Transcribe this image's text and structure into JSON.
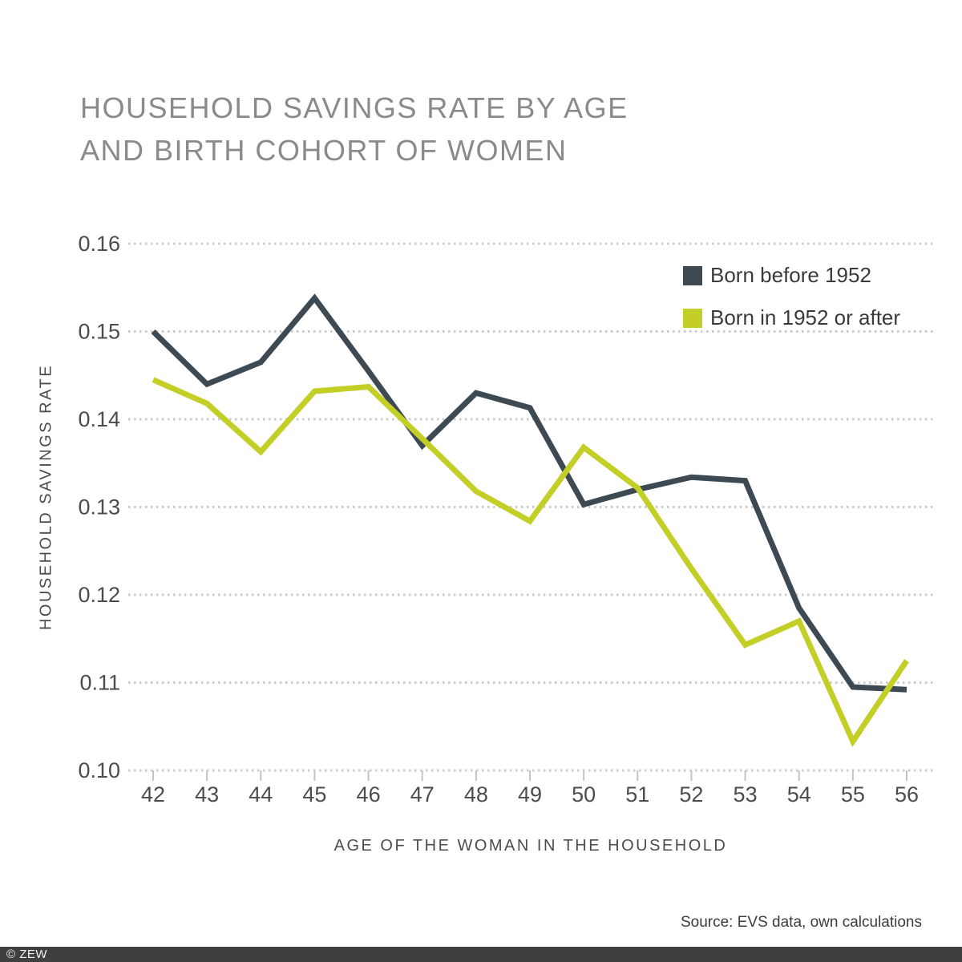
{
  "title": {
    "line1": "HOUSEHOLD SAVINGS RATE BY AGE",
    "line2": "AND BIRTH COHORT OF WOMEN"
  },
  "chart_data": {
    "type": "line",
    "x": [
      42,
      43,
      44,
      45,
      46,
      47,
      48,
      49,
      50,
      51,
      52,
      53,
      54,
      55,
      56
    ],
    "xlabel": "AGE OF THE WOMAN IN THE HOUSEHOLD",
    "ylabel": "HOUSEHOLD SAVINGS RATE",
    "ylim": [
      0.1,
      0.16
    ],
    "ytick_step": 0.01,
    "ytick_labels": [
      "0.16",
      "0.15",
      "0.14",
      "0.13",
      "0.12",
      "0.11",
      "0.10"
    ],
    "grid": "horizontal-dotted",
    "legend_position": "top-right",
    "series": [
      {
        "name": "Born before 1952",
        "color": "#3d4a53",
        "values": [
          0.15,
          0.144,
          0.1465,
          0.1538,
          0.1455,
          0.137,
          0.143,
          0.1413,
          0.1303,
          0.132,
          0.1334,
          0.133,
          0.1185,
          0.1095,
          0.1092
        ]
      },
      {
        "name": "Born in 1952 or after",
        "color": "#c3cf26",
        "values": [
          0.1445,
          0.1418,
          0.1363,
          0.1432,
          0.1437,
          0.1378,
          0.1318,
          0.1284,
          0.1368,
          0.1322,
          0.123,
          0.1143,
          0.117,
          0.1033,
          0.1125
        ]
      }
    ]
  },
  "source": "Source: EVS data, own calculations",
  "footer": {
    "copyright": "© ZEW"
  },
  "colors": {
    "title_text": "#8a8a8a",
    "axis_text": "#4c4c4c",
    "gridline": "#cbcbcb",
    "tick_mark": "#c4c4c4",
    "series_dark": "#3d4a53",
    "series_green": "#c3cf26",
    "footer_bar": "#3f3f3f",
    "footer_text": "#f2f2f2"
  }
}
